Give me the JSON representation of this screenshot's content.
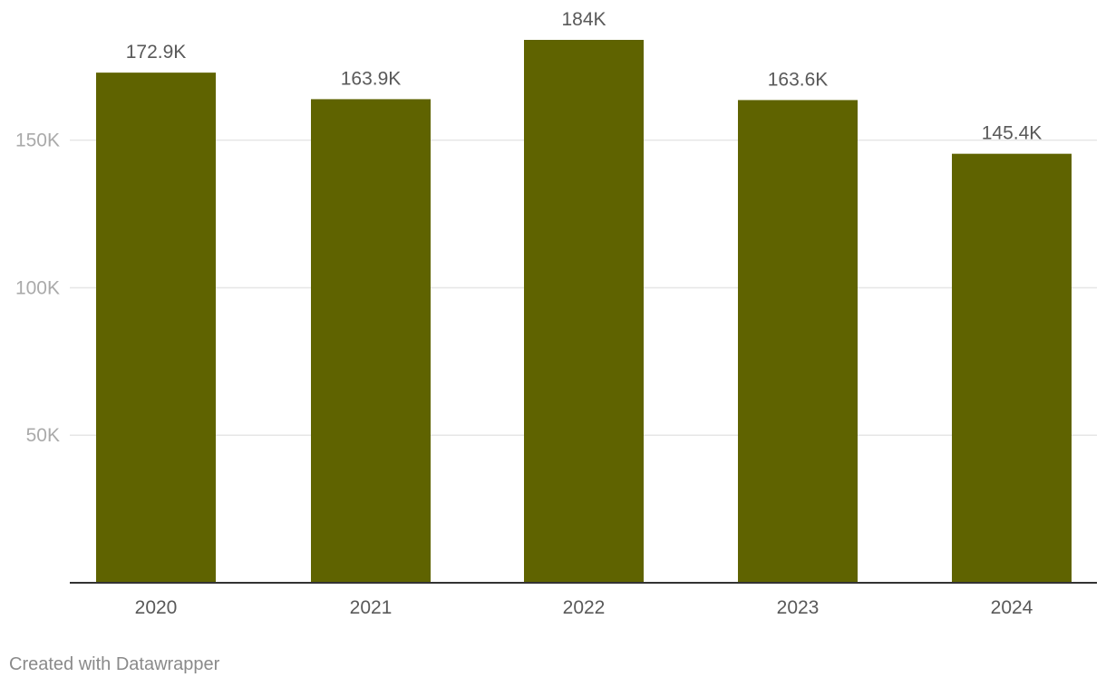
{
  "chart_data": {
    "type": "bar",
    "title": "",
    "xlabel": "",
    "ylabel": "",
    "categories": [
      "2020",
      "2021",
      "2022",
      "2023",
      "2024"
    ],
    "values": [
      172900,
      163900,
      184000,
      163600,
      145400
    ],
    "value_labels": [
      "172.9K",
      "163.9K",
      "184K",
      "163.6K",
      "145.4K"
    ],
    "ylim": [
      0,
      184000
    ],
    "yticks": [
      50000,
      100000,
      150000
    ],
    "ytick_labels": [
      "50K",
      "100K",
      "150K"
    ],
    "grid": true,
    "bar_color": "#5f6300",
    "grid_color": "#e6e6e6",
    "baseline_color": "#333333",
    "tick_label_color": "#aaaaaa",
    "label_color": "#595959"
  },
  "footer": {
    "credit": "Created with Datawrapper"
  }
}
